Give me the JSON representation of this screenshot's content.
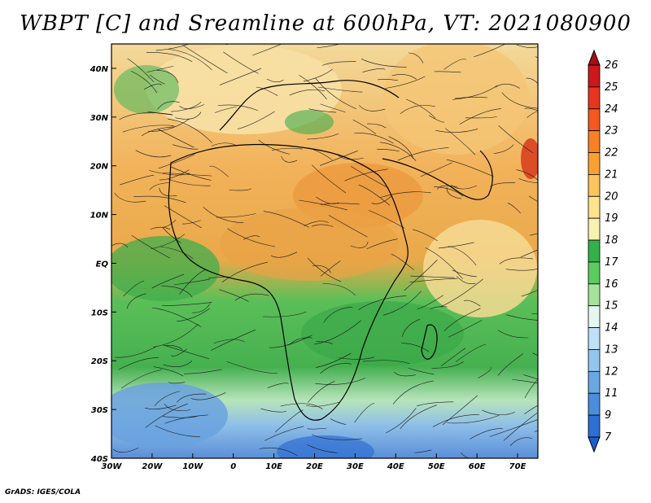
{
  "title": "WBPT [C] and Sreamline at 600hPa, VT: 2021080900",
  "credit": "GrADS: IGES/COLA",
  "map": {
    "lon_labels": [
      "30W",
      "20W",
      "10W",
      "0",
      "10E",
      "20E",
      "30E",
      "40E",
      "50E",
      "60E",
      "70E"
    ],
    "lat_labels": [
      "40N",
      "30N",
      "20N",
      "10N",
      "EQ",
      "10S",
      "20S",
      "30S",
      "40S"
    ],
    "lon_range": [
      -30,
      75
    ],
    "lat_range": [
      -40,
      45
    ]
  },
  "colorbar": {
    "labels": [
      "26",
      "25",
      "24",
      "23",
      "22",
      "21",
      "20",
      "19",
      "18",
      "17",
      "16",
      "15",
      "14",
      "13",
      "12",
      "11",
      "9",
      "7"
    ],
    "colors": [
      "#a50f15",
      "#cb181d",
      "#e8351f",
      "#f4581e",
      "#f98025",
      "#fba132",
      "#fbc45c",
      "#fde48d",
      "#f8f1b0",
      "#33b04a",
      "#5ccb60",
      "#a6e39a",
      "#e6f7f0",
      "#bfe0f6",
      "#93c6ef",
      "#6aa8e4",
      "#4a8ddb",
      "#2f6fd3",
      "#1e5cc9"
    ]
  }
}
